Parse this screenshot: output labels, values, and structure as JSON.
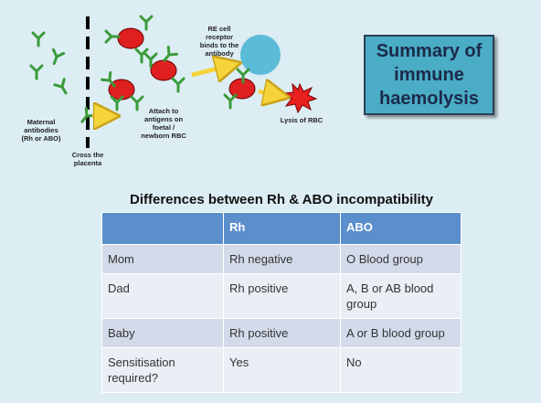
{
  "diagram": {
    "maternal": [
      "Maternal",
      "antibodies",
      "(Rh or ABO)"
    ],
    "cross": [
      "Cross the",
      "placenta"
    ],
    "attach": [
      "Attach to",
      "antigens on",
      "foetal /",
      "newborn RBC"
    ],
    "receptor": [
      "RE cell",
      "receptor",
      "binds to the",
      "antibody"
    ],
    "lysis": [
      "Lysis of RBC"
    ]
  },
  "title_box": [
    "Summary of",
    "immune",
    "haemolysis"
  ],
  "table": {
    "title": "Differences between Rh & ABO incompatibility",
    "header": [
      "Rh",
      "ABO"
    ],
    "rows": [
      [
        "Mom",
        "Rh negative",
        "O Blood group"
      ],
      [
        "Dad",
        "Rh positive",
        "A, B or AB blood group"
      ],
      [
        "Baby",
        "Rh positive",
        "A or B blood group"
      ],
      [
        "Sensitisation required?",
        "Yes",
        "No"
      ]
    ]
  }
}
